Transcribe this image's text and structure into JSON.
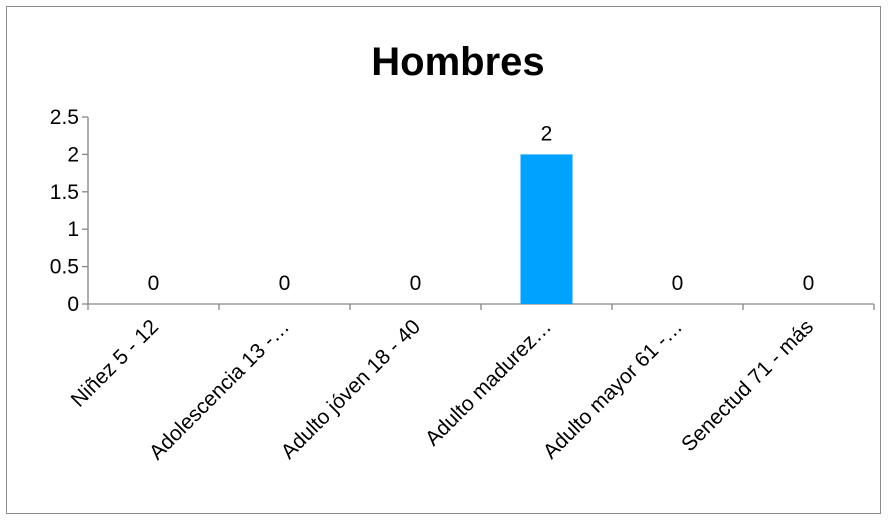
{
  "chart_data": {
    "type": "bar",
    "title": "Hombres",
    "xlabel": "",
    "ylabel": "",
    "categories": [
      "Niñez 5 - 12",
      "Adolescencia 13 -…",
      "Adulto jóven 18 - 40",
      "Adulto madurez…",
      "Adulto mayor 61 -…",
      "Senectud 71 - más"
    ],
    "values": [
      0,
      0,
      0,
      2,
      0,
      0
    ],
    "data_labels": [
      "0",
      "0",
      "0",
      "2",
      "0",
      "0"
    ],
    "ylim": [
      0,
      2.5
    ],
    "y_ticks": [
      "0",
      "0.5",
      "1",
      "1.5",
      "2",
      "2.5"
    ],
    "grid": false,
    "legend": "none",
    "bar_color": "#00a2ff",
    "axis_color": "#868686"
  }
}
